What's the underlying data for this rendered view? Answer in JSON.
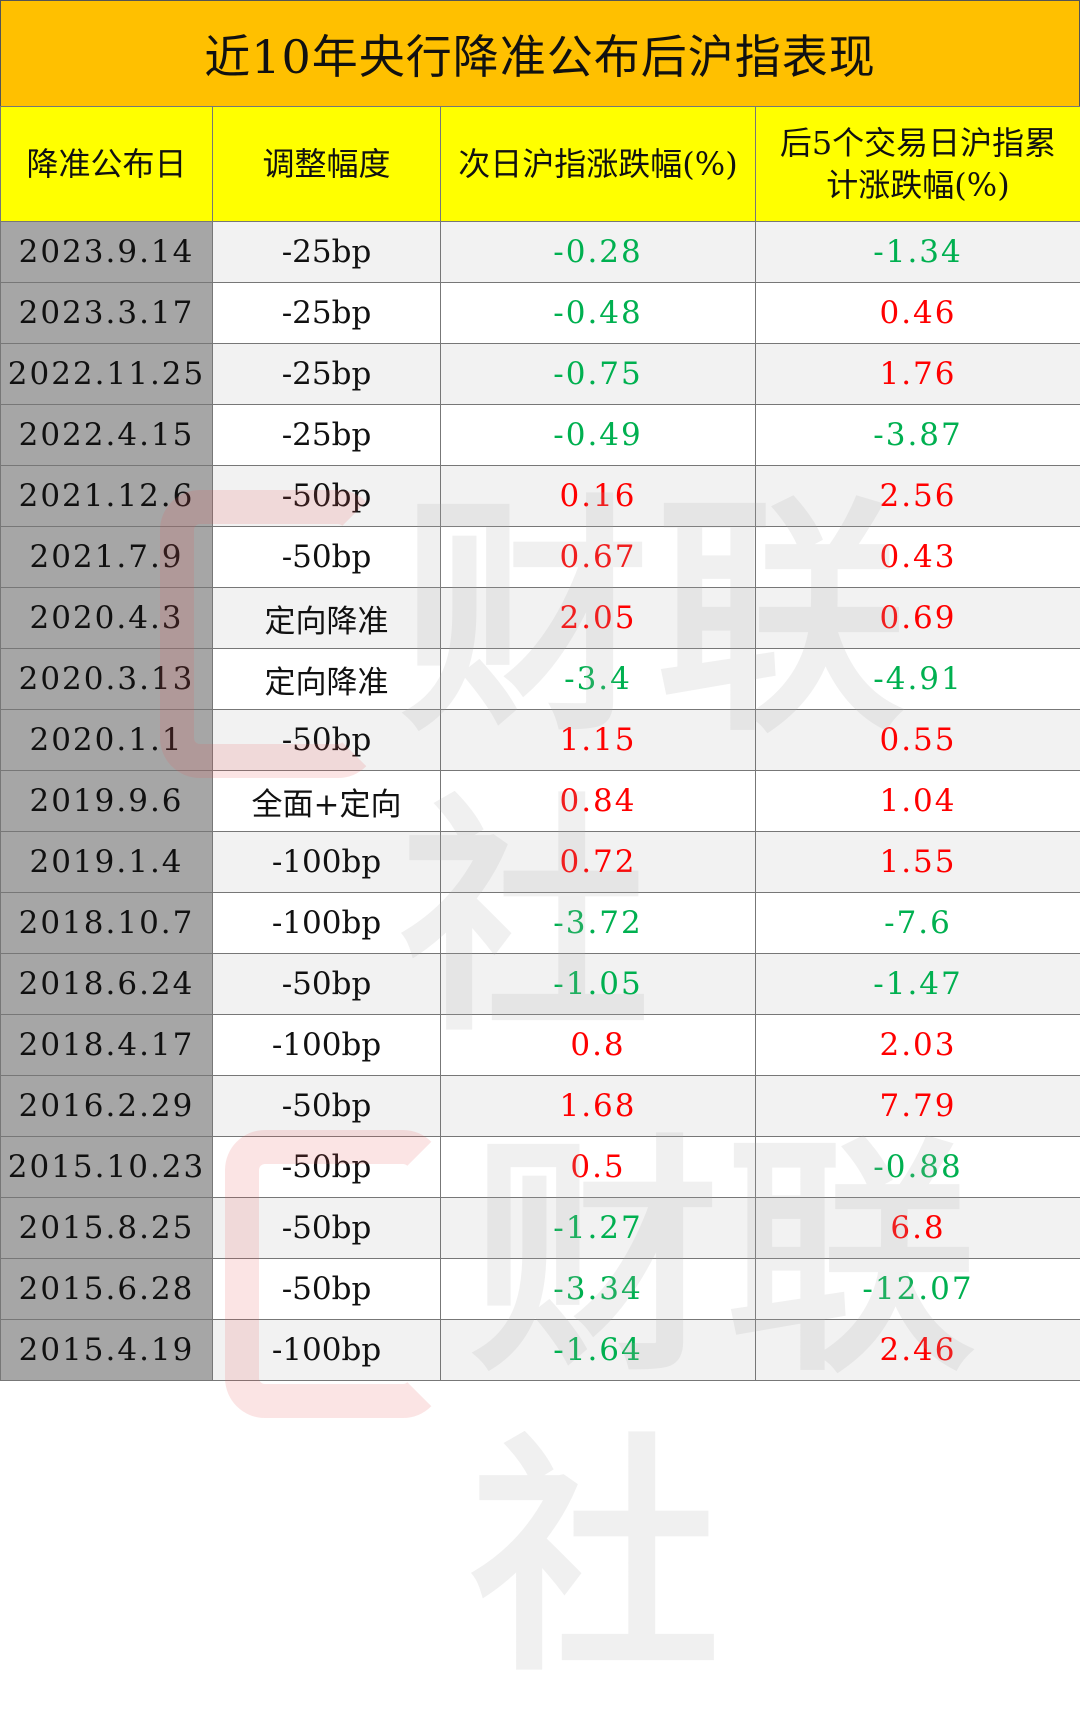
{
  "title": "近10年央行降准公布后沪指表现",
  "headers": {
    "date": "降准公布日",
    "adjustment": "调整幅度",
    "next_day": "次日沪指涨跌幅(%)",
    "five_day_line1": "后5个交易日沪指累",
    "five_day_line2": "计涨跌幅(%)"
  },
  "rows": [
    {
      "date": "2023.9.14",
      "adj": "-25bp",
      "next": "-0.28",
      "five": "-1.34"
    },
    {
      "date": "2023.3.17",
      "adj": "-25bp",
      "next": "-0.48",
      "five": "0.46"
    },
    {
      "date": "2022.11.25",
      "adj": "-25bp",
      "next": "-0.75",
      "five": "1.76"
    },
    {
      "date": "2022.4.15",
      "adj": "-25bp",
      "next": "-0.49",
      "five": "-3.87"
    },
    {
      "date": "2021.12.6",
      "adj": "-50bp",
      "next": "0.16",
      "five": "2.56"
    },
    {
      "date": "2021.7.9",
      "adj": "-50bp",
      "next": "0.67",
      "five": "0.43"
    },
    {
      "date": "2020.4.3",
      "adj": "定向降准",
      "next": "2.05",
      "five": "0.69"
    },
    {
      "date": "2020.3.13",
      "adj": "定向降准",
      "next": "-3.4",
      "five": "-4.91"
    },
    {
      "date": "2020.1.1",
      "adj": "-50bp",
      "next": "1.15",
      "five": "0.55"
    },
    {
      "date": "2019.9.6",
      "adj": "全面+定向",
      "next": "0.84",
      "five": "1.04"
    },
    {
      "date": "2019.1.4",
      "adj": "-100bp",
      "next": "0.72",
      "five": "1.55"
    },
    {
      "date": "2018.10.7",
      "adj": "-100bp",
      "next": "-3.72",
      "five": "-7.6"
    },
    {
      "date": "2018.6.24",
      "adj": "-50bp",
      "next": "-1.05",
      "five": "-1.47"
    },
    {
      "date": "2018.4.17",
      "adj": "-100bp",
      "next": "0.8",
      "five": "2.03"
    },
    {
      "date": "2016.2.29",
      "adj": "-50bp",
      "next": "1.68",
      "five": "7.79"
    },
    {
      "date": "2015.10.23",
      "adj": "-50bp",
      "next": "0.5",
      "five": "-0.88"
    },
    {
      "date": "2015.8.25",
      "adj": "-50bp",
      "next": "-1.27",
      "five": "6.8"
    },
    {
      "date": "2015.6.28",
      "adj": "-50bp",
      "next": "-3.34",
      "five": "-12.07"
    },
    {
      "date": "2015.4.19",
      "adj": "-100bp",
      "next": "-1.64",
      "five": "2.46"
    }
  ],
  "colors": {
    "title_bg": "#ffc000",
    "header_bg": "#ffff00",
    "date_col_bg": "#a6a6a6",
    "positive": "#ff0000",
    "negative": "#00b050"
  },
  "watermark": "财联社"
}
